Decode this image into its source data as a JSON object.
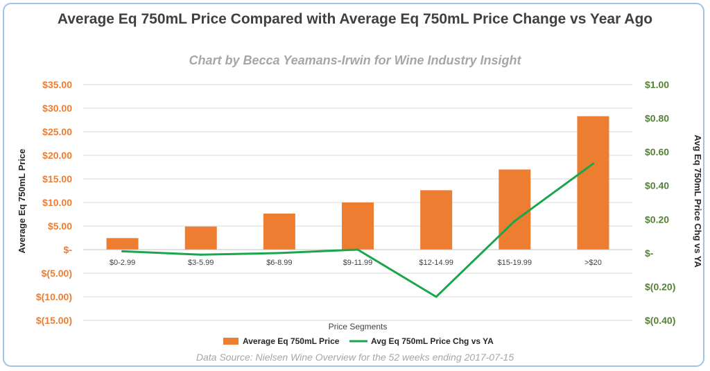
{
  "chart_data": {
    "type": "bar",
    "title": "Average Eq 750mL Price Compared with Average Eq 750mL Price Change vs Year Ago",
    "subtitle": "Chart by Becca Yeamans-Irwin for Wine Industry Insight",
    "source": "Data Source: Nielsen Wine Overview for the 52 weeks ending 2017-07-15",
    "xlabel": "Price Segments",
    "ylabel": "Average Eq 750mL Price",
    "ylabel_right": "Avg Eq 750mL Price Chg vs YA",
    "categories": [
      "$0-2.99",
      "$3-5.99",
      "$6-8.99",
      "$9-11.99",
      "$12-14.99",
      "$15-19.99",
      ">$20"
    ],
    "series": [
      {
        "name": "Average Eq 750mL Price",
        "type": "bar",
        "axis": "left",
        "color": "#ed7d31",
        "values": [
          2.45,
          4.9,
          7.65,
          10.0,
          12.6,
          17.0,
          28.3
        ]
      },
      {
        "name": "Avg Eq 750mL Price Chg vs YA",
        "type": "line",
        "axis": "right",
        "color": "#1aa64a",
        "values": [
          0.01,
          -0.01,
          0.0,
          0.02,
          -0.26,
          0.19,
          0.53
        ]
      }
    ],
    "ylim": [
      -15,
      35
    ],
    "ylim_right": [
      -0.4,
      1.0
    ],
    "yticks": [
      "$35.00",
      "$30.00",
      "$25.00",
      "$20.00",
      "$15.00",
      "$10.00",
      "$5.00",
      "$-",
      "$(5.00)",
      "$(10.00)",
      "$(15.00)"
    ],
    "yticks_right": [
      "$1.00",
      "$0.80",
      "$0.60",
      "$0.40",
      "$0.20",
      "$-",
      "$(0.20)",
      "$(0.40)"
    ],
    "grid": true,
    "legend_position": "bottom"
  }
}
